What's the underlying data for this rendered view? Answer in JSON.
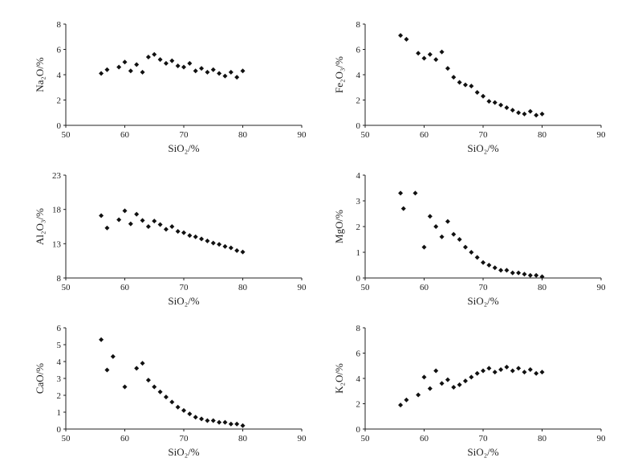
{
  "chart_data": [
    {
      "type": "scatter",
      "xlabel": "SiO₂/%",
      "ylabel": "Na₂O/%",
      "xlim": [
        50,
        90
      ],
      "ylim": [
        0,
        8
      ],
      "xticks": [
        50,
        60,
        70,
        80,
        90
      ],
      "yticks": [
        0,
        2,
        4,
        6,
        8
      ],
      "grid": false,
      "series": [
        {
          "values": [
            [
              56,
              4.1
            ],
            [
              57,
              4.4
            ],
            [
              59,
              4.6
            ],
            [
              60,
              5.0
            ],
            [
              61,
              4.3
            ],
            [
              62,
              4.8
            ],
            [
              63,
              4.2
            ],
            [
              64,
              5.4
            ],
            [
              65,
              5.6
            ],
            [
              66,
              5.2
            ],
            [
              67,
              4.9
            ],
            [
              68,
              5.1
            ],
            [
              69,
              4.7
            ],
            [
              70,
              4.6
            ],
            [
              71,
              4.9
            ],
            [
              72,
              4.3
            ],
            [
              73,
              4.5
            ],
            [
              74,
              4.2
            ],
            [
              75,
              4.4
            ],
            [
              76,
              4.1
            ],
            [
              77,
              3.9
            ],
            [
              78,
              4.2
            ],
            [
              79,
              3.8
            ],
            [
              80,
              4.3
            ]
          ]
        }
      ]
    },
    {
      "type": "scatter",
      "xlabel": "SiO₂/%",
      "ylabel": "Fe₂O₃/%",
      "xlim": [
        50,
        90
      ],
      "ylim": [
        0,
        8
      ],
      "xticks": [
        50,
        60,
        70,
        80,
        90
      ],
      "yticks": [
        0,
        2,
        4,
        6,
        8
      ],
      "grid": false,
      "series": [
        {
          "values": [
            [
              56,
              7.1
            ],
            [
              57,
              6.8
            ],
            [
              59,
              5.7
            ],
            [
              60,
              5.3
            ],
            [
              61,
              5.6
            ],
            [
              62,
              5.2
            ],
            [
              63,
              5.8
            ],
            [
              64,
              4.5
            ],
            [
              65,
              3.8
            ],
            [
              66,
              3.4
            ],
            [
              67,
              3.2
            ],
            [
              68,
              3.1
            ],
            [
              69,
              2.6
            ],
            [
              70,
              2.3
            ],
            [
              71,
              1.9
            ],
            [
              72,
              1.8
            ],
            [
              73,
              1.6
            ],
            [
              74,
              1.4
            ],
            [
              75,
              1.2
            ],
            [
              76,
              1.0
            ],
            [
              77,
              0.9
            ],
            [
              78,
              1.1
            ],
            [
              79,
              0.8
            ],
            [
              80,
              0.9
            ]
          ]
        }
      ]
    },
    {
      "type": "scatter",
      "xlabel": "SiO₂/%",
      "ylabel": "Al₂O₃/%",
      "xlim": [
        50,
        90
      ],
      "ylim": [
        8,
        23
      ],
      "xticks": [
        50,
        60,
        70,
        80,
        90
      ],
      "yticks": [
        8,
        13,
        18,
        23
      ],
      "grid": false,
      "series": [
        {
          "values": [
            [
              56,
              17.1
            ],
            [
              57,
              15.3
            ],
            [
              59,
              16.5
            ],
            [
              60,
              17.8
            ],
            [
              61,
              15.9
            ],
            [
              62,
              17.3
            ],
            [
              63,
              16.4
            ],
            [
              64,
              15.5
            ],
            [
              65,
              16.3
            ],
            [
              66,
              15.8
            ],
            [
              67,
              15.1
            ],
            [
              68,
              15.5
            ],
            [
              69,
              14.8
            ],
            [
              70,
              14.6
            ],
            [
              71,
              14.2
            ],
            [
              72,
              14.0
            ],
            [
              73,
              13.7
            ],
            [
              74,
              13.4
            ],
            [
              75,
              13.1
            ],
            [
              76,
              12.9
            ],
            [
              77,
              12.6
            ],
            [
              78,
              12.4
            ],
            [
              79,
              12.0
            ],
            [
              80,
              11.8
            ]
          ]
        }
      ]
    },
    {
      "type": "scatter",
      "xlabel": "SiO₂/%",
      "ylabel": "MgO/%",
      "xlim": [
        50,
        90
      ],
      "ylim": [
        0,
        4
      ],
      "xticks": [
        50,
        60,
        70,
        80,
        90
      ],
      "yticks": [
        0,
        1,
        2,
        3,
        4
      ],
      "grid": false,
      "series": [
        {
          "values": [
            [
              56,
              3.3
            ],
            [
              56.5,
              2.7
            ],
            [
              58.5,
              3.3
            ],
            [
              60,
              1.2
            ],
            [
              61,
              2.4
            ],
            [
              62,
              2.0
            ],
            [
              63,
              1.6
            ],
            [
              64,
              2.2
            ],
            [
              65,
              1.7
            ],
            [
              66,
              1.5
            ],
            [
              67,
              1.2
            ],
            [
              68,
              1.0
            ],
            [
              69,
              0.8
            ],
            [
              70,
              0.6
            ],
            [
              71,
              0.5
            ],
            [
              72,
              0.4
            ],
            [
              73,
              0.3
            ],
            [
              74,
              0.3
            ],
            [
              75,
              0.2
            ],
            [
              76,
              0.2
            ],
            [
              77,
              0.15
            ],
            [
              78,
              0.1
            ],
            [
              79,
              0.1
            ],
            [
              80,
              0.05
            ]
          ]
        }
      ]
    },
    {
      "type": "scatter",
      "xlabel": "SiO₂/%",
      "ylabel": "CaO/%",
      "xlim": [
        50,
        90
      ],
      "ylim": [
        0,
        6
      ],
      "xticks": [
        50,
        60,
        70,
        80,
        90
      ],
      "yticks": [
        0,
        1,
        2,
        3,
        4,
        5,
        6
      ],
      "grid": false,
      "series": [
        {
          "values": [
            [
              56,
              5.3
            ],
            [
              57,
              3.5
            ],
            [
              58,
              4.3
            ],
            [
              60,
              2.5
            ],
            [
              62,
              3.6
            ],
            [
              63,
              3.9
            ],
            [
              64,
              2.9
            ],
            [
              65,
              2.5
            ],
            [
              66,
              2.2
            ],
            [
              67,
              1.9
            ],
            [
              68,
              1.6
            ],
            [
              69,
              1.3
            ],
            [
              70,
              1.1
            ],
            [
              71,
              0.9
            ],
            [
              72,
              0.7
            ],
            [
              73,
              0.6
            ],
            [
              74,
              0.5
            ],
            [
              75,
              0.5
            ],
            [
              76,
              0.4
            ],
            [
              77,
              0.4
            ],
            [
              78,
              0.3
            ],
            [
              79,
              0.3
            ],
            [
              80,
              0.2
            ]
          ]
        }
      ]
    },
    {
      "type": "scatter",
      "xlabel": "SiO₂/%",
      "ylabel": "K₂O/%",
      "xlim": [
        50,
        90
      ],
      "ylim": [
        0,
        8
      ],
      "xticks": [
        50,
        60,
        70,
        80,
        90
      ],
      "yticks": [
        0,
        2,
        4,
        6,
        8
      ],
      "grid": false,
      "series": [
        {
          "values": [
            [
              56,
              1.9
            ],
            [
              57,
              2.3
            ],
            [
              59,
              2.7
            ],
            [
              60,
              4.1
            ],
            [
              61,
              3.2
            ],
            [
              62,
              4.6
            ],
            [
              63,
              3.6
            ],
            [
              64,
              3.9
            ],
            [
              65,
              3.3
            ],
            [
              66,
              3.5
            ],
            [
              67,
              3.8
            ],
            [
              68,
              4.1
            ],
            [
              69,
              4.4
            ],
            [
              70,
              4.6
            ],
            [
              71,
              4.8
            ],
            [
              72,
              4.5
            ],
            [
              73,
              4.7
            ],
            [
              74,
              4.9
            ],
            [
              75,
              4.6
            ],
            [
              76,
              4.8
            ],
            [
              77,
              4.5
            ],
            [
              78,
              4.7
            ],
            [
              79,
              4.4
            ],
            [
              80,
              4.5
            ]
          ]
        }
      ]
    }
  ]
}
